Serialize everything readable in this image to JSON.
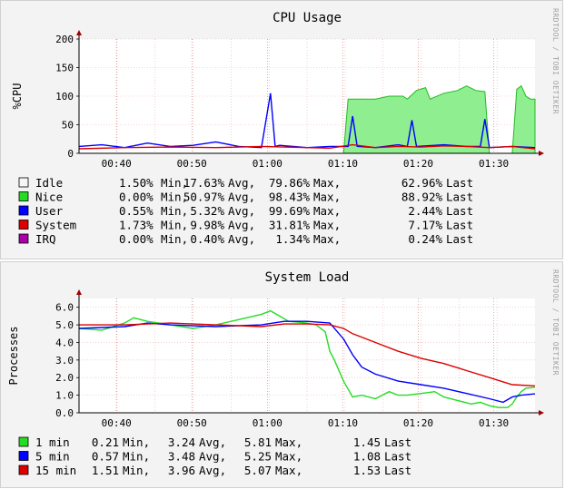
{
  "watermark": "RRDTOOL / TOBI OETIKER",
  "chart_data": [
    {
      "type": "line",
      "title": "CPU Usage",
      "ylabel": "%CPU",
      "ylim": [
        0,
        200
      ],
      "y_ticks": [
        "0",
        "50",
        "100",
        "150",
        "200"
      ],
      "x_ticks": [
        "00:40",
        "00:50",
        "01:00",
        "01:10",
        "01:20",
        "01:30"
      ],
      "grid": true,
      "series": [
        {
          "name": "Idle",
          "color": "#f6f6f6",
          "stats": {
            "min": "1.50%",
            "avg": "17.63%",
            "max": "79.86%",
            "last": "62.96%"
          }
        },
        {
          "name": "Nice",
          "color": "#22dd22",
          "stats": {
            "min": "0.00%",
            "avg": "50.97%",
            "max": "98.43%",
            "last": "88.92%"
          },
          "x": [
            0,
            0.58,
            0.59,
            0.62,
            0.65,
            0.68,
            0.71,
            0.72,
            0.74,
            0.76,
            0.77,
            0.8,
            0.83,
            0.85,
            0.87,
            0.89,
            0.9,
            0.93,
            0.94,
            0.95,
            0.96,
            0.97,
            0.98,
            0.99,
            1
          ],
          "values": [
            0,
            0,
            95,
            95,
            95,
            100,
            100,
            95,
            110,
            115,
            95,
            105,
            110,
            118,
            110,
            108,
            0,
            0,
            0,
            0,
            112,
            118,
            100,
            95,
            95
          ]
        },
        {
          "name": "User",
          "color": "#0000ff",
          "stats": {
            "min": "0.55%",
            "avg": "5.32%",
            "max": "99.69%",
            "last": "2.44%"
          },
          "x": [
            0,
            0.05,
            0.1,
            0.15,
            0.2,
            0.25,
            0.3,
            0.35,
            0.4,
            0.42,
            0.43,
            0.44,
            0.5,
            0.55,
            0.59,
            0.6,
            0.61,
            0.65,
            0.7,
            0.72,
            0.73,
            0.74,
            0.8,
            0.85,
            0.88,
            0.89,
            0.9,
            0.95,
            1
          ],
          "values": [
            12,
            15,
            10,
            18,
            12,
            14,
            20,
            12,
            10,
            105,
            12,
            14,
            10,
            12,
            12,
            65,
            12,
            10,
            15,
            12,
            58,
            12,
            15,
            12,
            12,
            60,
            10,
            12,
            10
          ]
        },
        {
          "name": "System",
          "color": "#dd0000",
          "stats": {
            "min": "1.73%",
            "avg": "9.98%",
            "max": "31.81%",
            "last": "7.17%"
          },
          "x": [
            0,
            0.1,
            0.2,
            0.3,
            0.4,
            0.5,
            0.55,
            0.6,
            0.65,
            0.7,
            0.75,
            0.8,
            0.85,
            0.9,
            0.95,
            1
          ],
          "values": [
            8,
            10,
            11,
            10,
            12,
            10,
            9,
            15,
            10,
            12,
            11,
            13,
            12,
            10,
            12,
            8
          ]
        },
        {
          "name": "IRQ",
          "color": "#aa00aa",
          "stats": {
            "min": "0.00%",
            "avg": "0.40%",
            "max": "1.34%",
            "last": "0.24%"
          }
        }
      ]
    },
    {
      "type": "line",
      "title": "System Load",
      "ylabel": "Processes",
      "ylim": [
        0,
        6.5
      ],
      "y_ticks": [
        "0.0",
        "1.0",
        "2.0",
        "3.0",
        "4.0",
        "5.0",
        "6.0"
      ],
      "x_ticks": [
        "00:40",
        "00:50",
        "01:00",
        "01:10",
        "01:20",
        "01:30"
      ],
      "grid": true,
      "series": [
        {
          "name": "1 min",
          "color": "#22dd22",
          "stats": {
            "min": "0.21",
            "avg": "3.24",
            "max": "5.81",
            "last": "1.45"
          },
          "x": [
            0,
            0.05,
            0.1,
            0.12,
            0.15,
            0.2,
            0.25,
            0.3,
            0.35,
            0.4,
            0.42,
            0.44,
            0.46,
            0.5,
            0.52,
            0.54,
            0.55,
            0.56,
            0.58,
            0.6,
            0.62,
            0.65,
            0.68,
            0.7,
            0.72,
            0.75,
            0.78,
            0.8,
            0.83,
            0.86,
            0.88,
            0.9,
            0.92,
            0.94,
            0.95,
            0.96,
            0.97,
            0.98,
            1
          ],
          "values": [
            4.8,
            4.7,
            5.1,
            5.4,
            5.2,
            5.0,
            4.8,
            5.0,
            5.3,
            5.6,
            5.8,
            5.5,
            5.2,
            5.1,
            5.0,
            4.6,
            3.5,
            3.0,
            1.8,
            0.9,
            1.0,
            0.8,
            1.2,
            1.0,
            1.0,
            1.1,
            1.2,
            0.9,
            0.7,
            0.5,
            0.6,
            0.4,
            0.3,
            0.3,
            0.5,
            0.9,
            1.2,
            1.4,
            1.45
          ]
        },
        {
          "name": "5 min",
          "color": "#0000ff",
          "stats": {
            "min": "0.57",
            "avg": "3.48",
            "max": "5.25",
            "last": "1.08"
          },
          "x": [
            0,
            0.1,
            0.15,
            0.2,
            0.3,
            0.4,
            0.45,
            0.5,
            0.55,
            0.58,
            0.6,
            0.62,
            0.65,
            0.7,
            0.75,
            0.8,
            0.85,
            0.9,
            0.93,
            0.95,
            0.97,
            1
          ],
          "values": [
            4.8,
            4.9,
            5.1,
            5.0,
            4.9,
            5.0,
            5.2,
            5.2,
            5.1,
            4.2,
            3.3,
            2.6,
            2.2,
            1.8,
            1.6,
            1.4,
            1.1,
            0.8,
            0.6,
            0.9,
            1.0,
            1.08
          ]
        },
        {
          "name": "15 min",
          "color": "#dd0000",
          "stats": {
            "min": "1.51",
            "avg": "3.96",
            "max": "5.07",
            "last": "1.53"
          },
          "x": [
            0,
            0.1,
            0.2,
            0.3,
            0.4,
            0.45,
            0.5,
            0.55,
            0.58,
            0.6,
            0.65,
            0.7,
            0.75,
            0.8,
            0.85,
            0.9,
            0.95,
            1
          ],
          "values": [
            5.0,
            5.0,
            5.1,
            5.0,
            4.9,
            5.05,
            5.05,
            5.0,
            4.8,
            4.5,
            4.0,
            3.5,
            3.1,
            2.8,
            2.4,
            2.0,
            1.6,
            1.53
          ]
        }
      ]
    }
  ]
}
